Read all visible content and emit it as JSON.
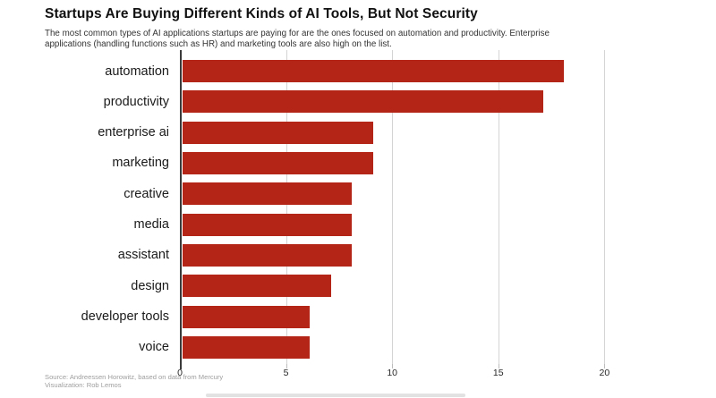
{
  "header": {
    "title": "Startups Are Buying Different Kinds of AI Tools, But Not Security",
    "subtitle_lines": [
      "The most common types of AI applications startups are paying for are the ones focused on automation and productivity. Enterprise",
      "applications (handling functions such as HR) and marketing tools are also high on the list."
    ]
  },
  "chart_data": {
    "type": "bar",
    "orientation": "horizontal",
    "title": "Startups Are Buying Different Kinds of AI Tools, But Not Security",
    "subtitle": "The most common types of AI applications startups are paying for are the ones focused on automation and productivity. Enterprise applications (handling functions such as HR) and marketing tools are also high on the list.",
    "categories": [
      "automation",
      "productivity",
      "enterprise ai",
      "marketing",
      "creative",
      "media",
      "assistant",
      "design",
      "developer tools",
      "voice"
    ],
    "values": [
      18,
      17,
      9,
      9,
      8,
      8,
      8,
      7,
      6,
      6
    ],
    "xlabel": "",
    "ylabel": "",
    "xticks": [
      0,
      5,
      10,
      15,
      20
    ],
    "xlim": [
      0,
      24.75
    ],
    "grid": "vertical-light-gray",
    "legend": "none",
    "bar_color": "#b42518",
    "axis_color": "#3a3a3a",
    "gridline_color": "#d4d4d4",
    "tick_label_color": "#262626"
  },
  "footer": {
    "source": "Source: Andreessen Horowitz, based on data from Mercury",
    "visualization": "Visualization: Rob Lemos"
  }
}
